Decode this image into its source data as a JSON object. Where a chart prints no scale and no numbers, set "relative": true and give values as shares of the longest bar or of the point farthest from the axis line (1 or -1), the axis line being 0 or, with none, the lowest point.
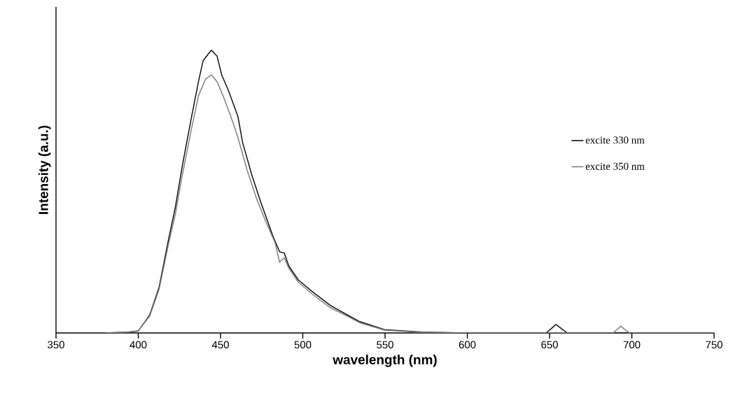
{
  "chart_data": {
    "type": "line",
    "relative": true,
    "xlabel": "wavelength (nm)",
    "ylabel": "Intensity (a.u.)",
    "xlim": [
      350,
      750
    ],
    "xticks": [
      350,
      400,
      450,
      500,
      550,
      600,
      650,
      700,
      750
    ],
    "legend": "right",
    "line_style": "solid",
    "series": [
      {
        "name": "excite 330 nm",
        "color": "#111111",
        "x": [
          380,
          394,
          400,
          407,
          412.7,
          418.3,
          422.5,
          426.8,
          432.4,
          436.6,
          439.4,
          444.4,
          447.9,
          450.7,
          454.9,
          460.6,
          463.4,
          469,
          474.6,
          481.7,
          485.9,
          488.7,
          491.5,
          497.2,
          505.6,
          516.9,
          528.2,
          534.6,
          549.7,
          572.5,
          600,
          647.9,
          653.9,
          660.7,
          750
        ],
        "values": [
          0,
          0.003,
          0.007,
          0.064,
          0.163,
          0.328,
          0.444,
          0.592,
          0.765,
          0.889,
          0.963,
          1,
          0.979,
          0.913,
          0.856,
          0.765,
          0.674,
          0.559,
          0.46,
          0.345,
          0.287,
          0.283,
          0.237,
          0.188,
          0.147,
          0.097,
          0.06,
          0.04,
          0.012,
          0.003,
          0,
          0,
          0.03,
          0,
          0
        ]
      },
      {
        "name": "excite 350 nm",
        "color": "#808080",
        "x": [
          380,
          394,
          400,
          407,
          412.7,
          418.3,
          422.5,
          426.8,
          432.4,
          436.6,
          440.8,
          444.4,
          447.9,
          452.1,
          456.3,
          460.6,
          466.2,
          471.8,
          477.5,
          483.1,
          485.9,
          488.7,
          491.5,
          497.2,
          505.6,
          516.9,
          528.2,
          534.6,
          549.7,
          572.5,
          600,
          688.6,
          693.3,
          698.5,
          750
        ],
        "values": [
          0,
          0.003,
          0.008,
          0.06,
          0.155,
          0.312,
          0.419,
          0.559,
          0.724,
          0.839,
          0.897,
          0.913,
          0.889,
          0.831,
          0.765,
          0.691,
          0.575,
          0.477,
          0.394,
          0.32,
          0.25,
          0.266,
          0.229,
          0.18,
          0.138,
          0.089,
          0.056,
          0.036,
          0.01,
          0.002,
          0,
          0,
          0.024,
          0,
          0
        ]
      }
    ]
  }
}
